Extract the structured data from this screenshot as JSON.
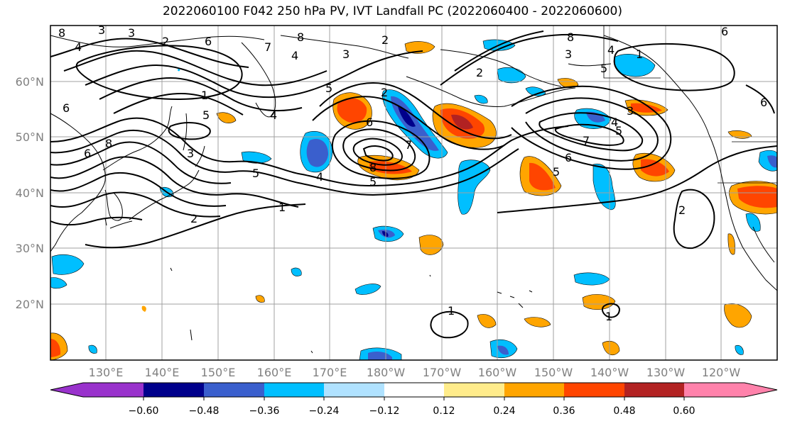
{
  "title": "2022060100 F042 250 hPa PV, IVT Landfall PC (2022060400 - 2022060600)",
  "map": {
    "lat_labels": [
      "60°N",
      "50°N",
      "40°N",
      "30°N",
      "20°N"
    ],
    "lon_labels": [
      "130°E",
      "140°E",
      "150°E",
      "160°E",
      "170°E",
      "180°W",
      "170°W",
      "160°W",
      "150°W",
      "140°W",
      "130°W",
      "120°W"
    ],
    "contour_labels": [
      "8",
      "3",
      "3",
      "4",
      "2",
      "6",
      "8",
      "2",
      "6",
      "6",
      "8",
      "1",
      "4",
      "5",
      "3",
      "5",
      "2",
      "3",
      "4",
      "5",
      "8",
      "7",
      "6",
      "5",
      "4",
      "7",
      "6",
      "5",
      "2",
      "2",
      "1",
      "2",
      "1",
      "8",
      "7",
      "3",
      "4",
      "5",
      "6",
      "3",
      "4",
      "5",
      "6",
      "1",
      "1"
    ],
    "colors": {
      "land": "#000000",
      "grid": "#a0a0a0",
      "contour": "#000000"
    }
  },
  "colorbar": {
    "tick_labels": [
      "−0.60",
      "−0.48",
      "−0.36",
      "−0.24",
      "−0.12",
      "0.12",
      "0.24",
      "0.36",
      "0.48",
      "0.60"
    ],
    "bin_colors": [
      "#9932cc",
      "#00008b",
      "#3a5fcd",
      "#00bfff",
      "#b0e2ff",
      "#ffffff",
      "#ffec8b",
      "#ffa500",
      "#ff4500",
      "#b22222",
      "#ff82ab"
    ]
  }
}
